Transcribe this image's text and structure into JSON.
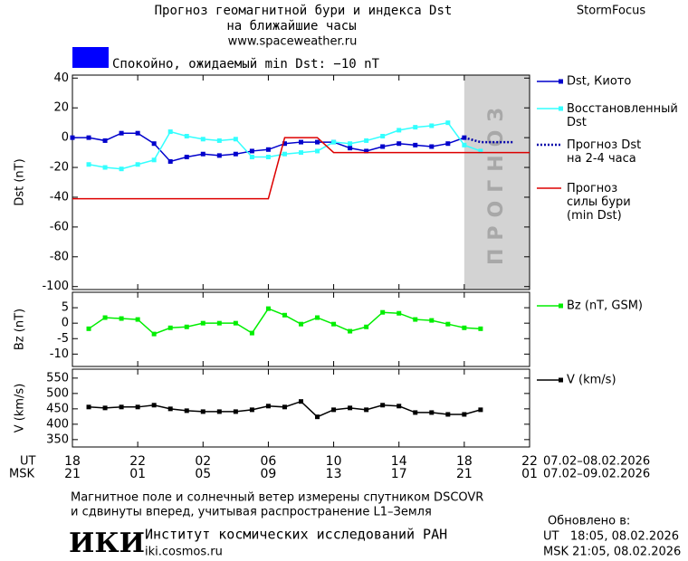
{
  "header": {
    "title": "Прогноз геомагнитной бури и индекса Dst",
    "subtitle": "на ближайшие часы",
    "url": "www.spaceweather.ru",
    "brand": "StormFocus",
    "status_text": "Спокойно, ожидаемый min Dst: −10 nT",
    "status_color": "#0000ff"
  },
  "time_axis": {
    "ut_label": "UT",
    "msk_label": "MSK",
    "ut_ticks": [
      {
        "value": 0,
        "label": "18"
      },
      {
        "value": 4,
        "label": "22"
      },
      {
        "value": 8,
        "label": "02"
      },
      {
        "value": 12,
        "label": "06"
      },
      {
        "value": 16,
        "label": "10"
      },
      {
        "value": 20,
        "label": "14"
      },
      {
        "value": 24,
        "label": "18"
      },
      {
        "value": 28,
        "label": "22"
      }
    ],
    "msk_ticks": [
      {
        "value": 0,
        "label": "21"
      },
      {
        "value": 4,
        "label": "01"
      },
      {
        "value": 8,
        "label": "05"
      },
      {
        "value": 12,
        "label": "09"
      },
      {
        "value": 16,
        "label": "13"
      },
      {
        "value": 20,
        "label": "17"
      },
      {
        "value": 24,
        "label": "21"
      },
      {
        "value": 28,
        "label": "01"
      }
    ],
    "ut_range": "07.02–08.02.2026",
    "msk_range": "07.02–09.02.2026"
  },
  "chart_data": [
    {
      "type": "line",
      "y_label": "Dst (nT)",
      "xlim": [
        0,
        28
      ],
      "ylim": [
        -102,
        42
      ],
      "yticks": [
        40,
        20,
        0,
        -20,
        -40,
        -60,
        -80,
        -100
      ],
      "forecast_region": [
        24,
        28
      ],
      "forecast_label": "ПРОГНОЗ",
      "forecast_color": "#d3d3d3",
      "series": [
        {
          "name": "Dst, Киото",
          "color": "#0000cc",
          "marker": "square",
          "x": [
            0,
            1,
            2,
            3,
            4,
            5,
            6,
            7,
            8,
            9,
            10,
            11,
            12,
            13,
            14,
            15,
            16,
            17,
            18,
            19,
            20,
            21,
            22,
            23,
            24
          ],
          "values": [
            0,
            0,
            -2,
            3,
            3,
            -4,
            -16,
            -13,
            -11,
            -12,
            -11,
            -9,
            -8,
            -4,
            -3,
            -3,
            -3,
            -7,
            -9,
            -6,
            -4,
            -5,
            -6,
            -4,
            0
          ]
        },
        {
          "name": "Восстановленный\nDst",
          "color": "#33ffff",
          "marker": "square",
          "x": [
            1,
            2,
            3,
            4,
            5,
            6,
            7,
            8,
            9,
            10,
            11,
            12,
            13,
            14,
            15,
            16,
            17,
            18,
            19,
            20,
            21,
            22,
            23,
            24,
            25
          ],
          "values": [
            -18,
            -20,
            -21,
            -18,
            -15,
            4,
            1,
            -1,
            -2,
            -1,
            -13,
            -13,
            -11,
            -10,
            -9,
            -3,
            -4,
            -2,
            1,
            5,
            7,
            8,
            10,
            -5,
            -9
          ]
        },
        {
          "name": "Прогноз Dst\nна 2-4 часа",
          "color": "#0000aa",
          "dash": "dotted",
          "x": [
            24,
            25,
            26,
            27
          ],
          "values": [
            0,
            -3,
            -3,
            -3
          ]
        },
        {
          "name": "Прогноз\nсилы бури\n(min Dst)",
          "color": "#dd0000",
          "x": [
            0,
            12,
            13,
            15,
            16,
            28
          ],
          "values": [
            -41,
            -41,
            0,
            0,
            -10,
            -10
          ]
        }
      ]
    },
    {
      "type": "line",
      "y_label": "Bz (nT)",
      "xlim": [
        0,
        28
      ],
      "ylim": [
        -14,
        10
      ],
      "yticks": [
        5,
        0,
        -5,
        -10
      ],
      "series": [
        {
          "name": "Bz (nT, GSM)",
          "color": "#00ee00",
          "marker": "square",
          "x": [
            1,
            2,
            3,
            4,
            5,
            6,
            7,
            8,
            9,
            10,
            11,
            12,
            13,
            14,
            15,
            16,
            17,
            18,
            19,
            20,
            21,
            22,
            23,
            24,
            25
          ],
          "values": [
            -1.8,
            1.8,
            1.5,
            1.2,
            -3.5,
            -1.5,
            -1.2,
            0,
            0,
            0,
            -3.2,
            4.7,
            2.6,
            -0.3,
            1.8,
            -0.3,
            -2.6,
            -1.2,
            3.5,
            3.2,
            1.2,
            0.9,
            -0.3,
            -1.5,
            -1.8
          ]
        }
      ]
    },
    {
      "type": "line",
      "y_label": "V (km/s)",
      "xlim": [
        0,
        28
      ],
      "ylim": [
        326,
        579
      ],
      "yticks": [
        550,
        500,
        450,
        400,
        350
      ],
      "series": [
        {
          "name": "V (km/s)",
          "color": "#000000",
          "marker": "square",
          "x": [
            1,
            2,
            3,
            4,
            5,
            6,
            7,
            8,
            9,
            10,
            11,
            12,
            13,
            14,
            15,
            16,
            17,
            18,
            19,
            20,
            21,
            22,
            23,
            24,
            25
          ],
          "values": [
            456,
            453,
            456,
            456,
            462,
            450,
            444,
            441,
            441,
            441,
            447,
            459,
            456,
            474,
            424,
            447,
            453,
            447,
            462,
            459,
            438,
            438,
            432,
            432,
            447
          ]
        }
      ]
    }
  ],
  "footer": {
    "note_line1": "Магнитное поле и солнечный ветер измерены спутником DSCOVR",
    "note_line2": "и сдвинуты вперед, учитывая распространение L1–Земля",
    "updated_label": "Обновлено в:",
    "updated_ut": "UT   18:05, 08.02.2026",
    "updated_msk": "MSK 21:05, 08.02.2026",
    "logo": "ИКИ",
    "institute": "Институт космических исследований РАН",
    "institute_url": "iki.cosmos.ru"
  }
}
